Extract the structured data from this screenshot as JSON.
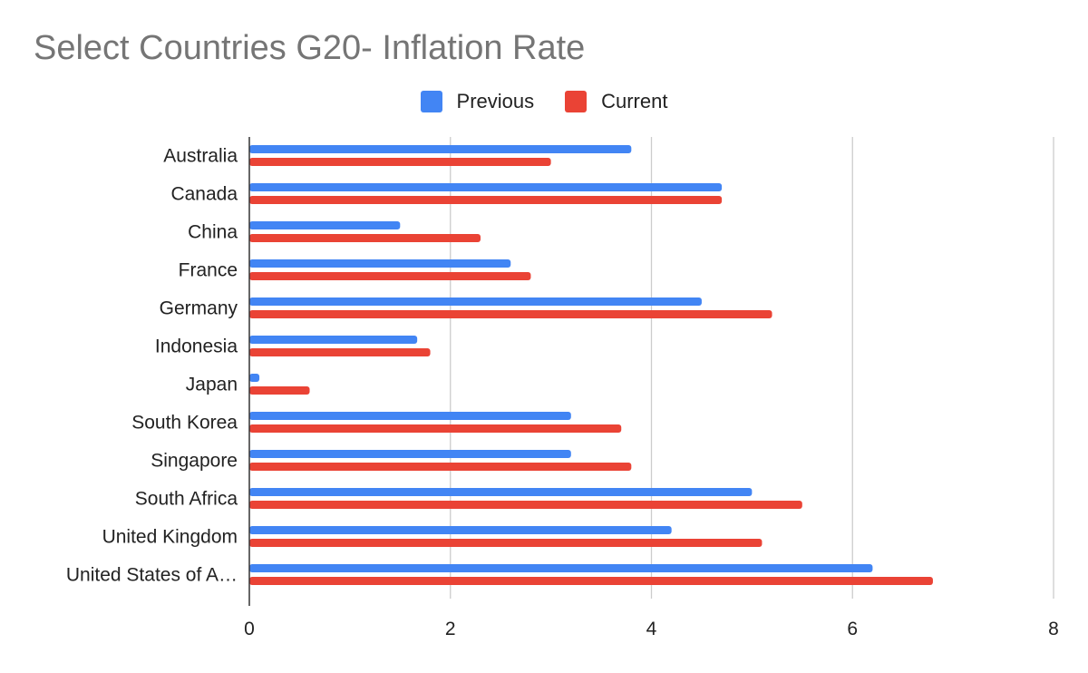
{
  "chart_data": {
    "type": "bar",
    "orientation": "horizontal",
    "title": "Select Countries G20- Inflation Rate",
    "categories": [
      "Australia",
      "Canada",
      "China",
      "France",
      "Germany",
      "Indonesia",
      "Japan",
      "South Korea",
      "Singapore",
      "South Africa",
      "United Kingdom",
      "United States of A…"
    ],
    "series": [
      {
        "name": "Previous",
        "color": "#4285f4",
        "values": [
          3.8,
          4.7,
          1.5,
          2.6,
          4.5,
          1.67,
          0.1,
          3.2,
          3.2,
          5.0,
          4.2,
          6.2
        ]
      },
      {
        "name": "Current",
        "color": "#ea4335",
        "values": [
          3.0,
          4.7,
          2.3,
          2.8,
          5.2,
          1.8,
          0.6,
          3.7,
          3.8,
          5.5,
          5.1,
          6.8
        ]
      }
    ],
    "xlim": [
      0,
      8
    ],
    "xticks": [
      "0",
      "2",
      "4",
      "6",
      "8"
    ],
    "xlabel": "",
    "ylabel": "",
    "grid": true,
    "legend_position": "top-center"
  }
}
